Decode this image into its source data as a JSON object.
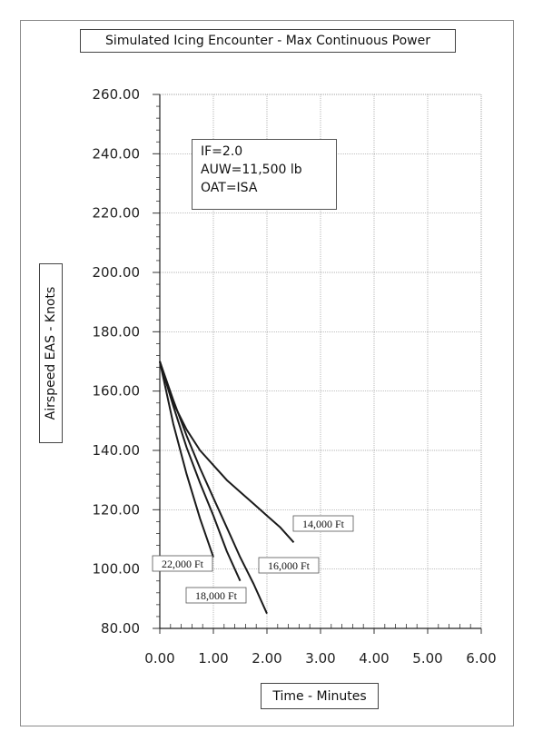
{
  "chart_data": {
    "type": "line",
    "title": "Simulated Icing Encounter - Max Continuous Power",
    "xlabel": "Time - Minutes",
    "ylabel": "Airspeed EAS - Knots",
    "xlim": [
      0,
      6
    ],
    "ylim": [
      80,
      260
    ],
    "x_ticks": [
      "0.00",
      "1.00",
      "2.00",
      "3.00",
      "4.00",
      "5.00",
      "6.00"
    ],
    "y_ticks": [
      "80.00",
      "100.00",
      "120.00",
      "140.00",
      "160.00",
      "180.00",
      "200.00",
      "220.00",
      "240.00",
      "260.00"
    ],
    "grid": true,
    "annotation_lines": [
      "IF=2.0",
      "AUW=11,500 lb",
      "OAT=ISA"
    ],
    "series": [
      {
        "name": "22,000 Ft",
        "x": [
          0,
          0.25,
          0.5,
          0.75,
          1.0
        ],
        "y": [
          170,
          149,
          132,
          117,
          104
        ]
      },
      {
        "name": "18,000 Ft",
        "x": [
          0,
          0.25,
          0.5,
          0.75,
          1.0,
          1.25,
          1.5
        ],
        "y": [
          170,
          155,
          141,
          129,
          118,
          106,
          96
        ]
      },
      {
        "name": "16,000 Ft",
        "x": [
          0,
          0.25,
          0.5,
          0.75,
          1.0,
          1.25,
          1.5,
          1.75,
          2.0
        ],
        "y": [
          170,
          157,
          145,
          134,
          124,
          114,
          104,
          95,
          85
        ]
      },
      {
        "name": "14,000 Ft",
        "x": [
          0,
          0.25,
          0.5,
          0.75,
          1.0,
          1.25,
          1.5,
          1.75,
          2.0,
          2.25,
          2.5
        ],
        "y": [
          170,
          156,
          147,
          140,
          135,
          130,
          126,
          122,
          118,
          114,
          109
        ]
      }
    ]
  }
}
